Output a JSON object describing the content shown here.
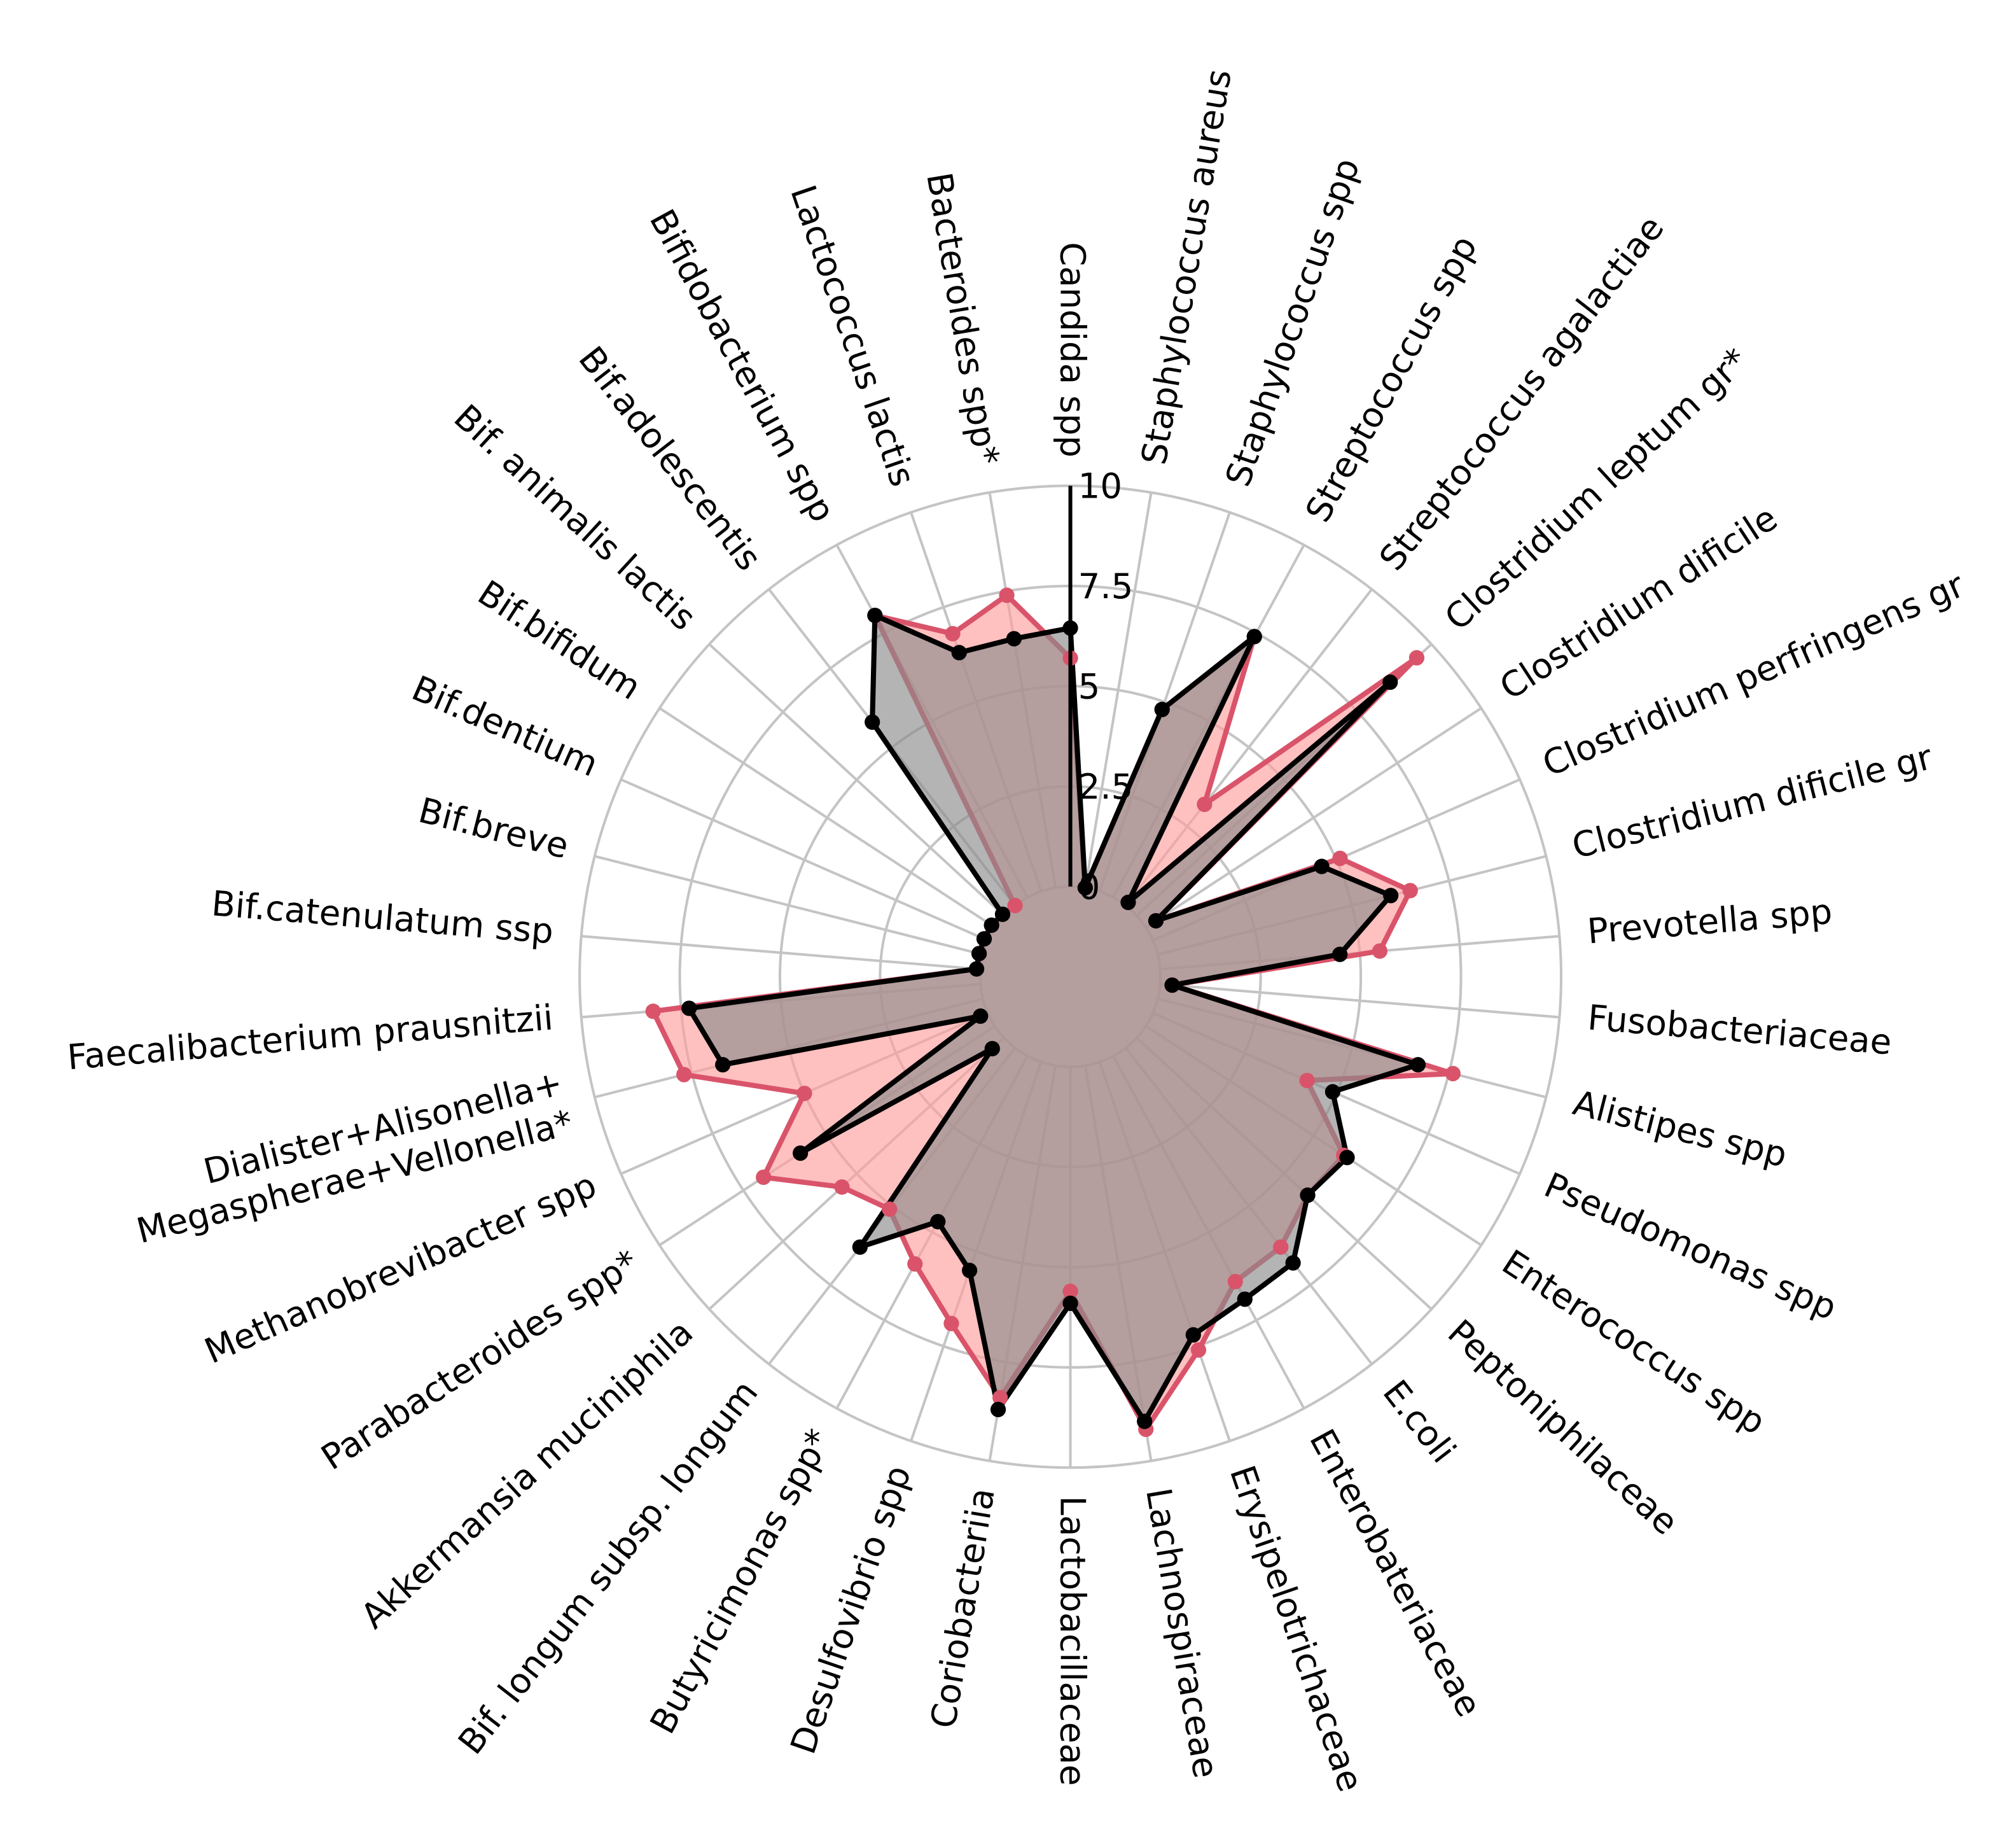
{
  "chart_data": {
    "type": "radar",
    "categories": [
      "Candida spp",
      "Staphylococcus aureus",
      "Staphylococcus spp",
      "Streptococcus spp",
      "Streptococcus agalactiae",
      "Clostridium leptum gr*",
      "Clostridium dificile",
      "Clostridium perfringens gr",
      "Clostridium dificile gr",
      "Prevotella spp",
      "Fusobacteriaceae",
      "Alistipes spp",
      "Pseudomonas spp",
      "Enterococcus spp",
      "Peptoniphilaceae",
      "E.coli",
      "Enterobateriaceae",
      "Erysipelotrichaceae",
      "Lachnospiraceae",
      "Lactobacillaceae",
      "Coriobacteriia",
      "Desulfovibrio spp",
      "Butyricimonas spp*",
      "Bif. longum subsp. longum",
      "Akkermansia muciniphila",
      "Parabacteroides spp*",
      "Methanobrevibacter spp",
      "Dialister+Alisonella+\nMegaspherae+Vellonella*",
      "Faecalibacterium prausnitzii",
      "Bif.catenulatum ssp",
      "Bif.breve",
      "Bif.dentium",
      "Bif.bifidum",
      "Bif. animalis lactis",
      "Bif.adolescentis",
      "Bifidobacterium spp",
      "Lactococcus lactis",
      "Bacteroides spp*"
    ],
    "series": [
      {
        "color": "#d9546a",
        "fill": "#ff9e9e",
        "values": [
          5.7,
          0,
          4.8,
          7.4,
          3.2,
          9.5,
          0.3,
          5.1,
          6.5,
          5.5,
          0.3,
          7.6,
          4.2,
          5.9,
          5.8,
          6.3,
          6.4,
          7.6,
          9.2,
          5.6,
          8.4,
          6.9,
          5.9,
          5.1,
          5.5,
          6.9,
          5.0,
          7.7,
          8.2,
          0.1,
          0.1,
          0.1,
          0.1,
          0.05,
          0,
          8.0,
          6.8,
          7.4
        ]
      },
      {
        "color": "#000000",
        "fill": "#8c8c8c",
        "values": [
          6.45,
          0,
          4.8,
          7.4,
          0.1,
          8.6,
          0.3,
          4.6,
          6.0,
          4.5,
          0.3,
          6.7,
          4.9,
          6.0,
          5.8,
          6.8,
          6.9,
          7.2,
          9.0,
          5.9,
          8.7,
          5.5,
          4.7,
          6.3,
          0.4,
          5.8,
          0.2,
          6.7,
          7.3,
          0.1,
          0.1,
          0.1,
          0.1,
          0.05,
          5.8,
          8.0,
          6.3,
          6.3
        ]
      }
    ],
    "ylim": [
      -2.25,
      10
    ],
    "yticks": [
      0,
      2.5,
      5,
      7.5,
      10
    ],
    "grid": true
  }
}
